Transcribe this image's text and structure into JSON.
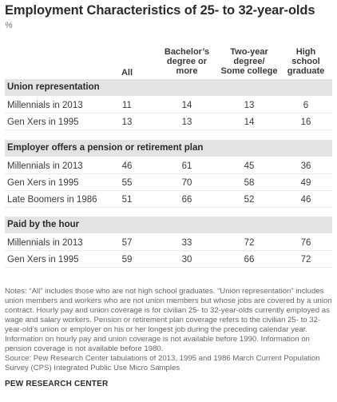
{
  "title": "Employment Characteristics of 25- to 32-year-olds",
  "unit": "%",
  "columns": [
    "All",
    "Bachelor’s\ndegree or\nmore",
    "Two-year\ndegree/\nSome college",
    "High school\ngraduate"
  ],
  "sections": [
    {
      "title": "Union representation",
      "rows": [
        {
          "label": "Millennials in 2013",
          "values": [
            "11",
            "14",
            "13",
            "6"
          ]
        },
        {
          "label": "Gen Xers in 1995",
          "values": [
            "13",
            "13",
            "14",
            "16"
          ]
        }
      ]
    },
    {
      "title": "Employer offers a pension or retirement plan",
      "rows": [
        {
          "label": "Millennials in 2013",
          "values": [
            "46",
            "61",
            "45",
            "36"
          ]
        },
        {
          "label": "Gen Xers in 1995",
          "values": [
            "55",
            "70",
            "58",
            "49"
          ]
        },
        {
          "label": "Late Boomers in 1986",
          "values": [
            "51",
            "66",
            "52",
            "46"
          ]
        }
      ]
    },
    {
      "title": "Paid by the hour",
      "rows": [
        {
          "label": "Millennials in 2013",
          "values": [
            "57",
            "33",
            "72",
            "76"
          ]
        },
        {
          "label": "Gen Xers in 1995",
          "values": [
            "59",
            "30",
            "66",
            "72"
          ]
        }
      ]
    }
  ],
  "notes": "Notes: “All” includes those who are not high school graduates. “Union representation” includes union members and workers who are not union members but whose jobs are covered by a union contract. Hourly pay and union coverage is for civilian 25- to 32-year-olds currently employed as wage and salary workers. Pension or retirement plan coverage refers to the civilian 25- to 32-year-old’s union or employer on his or her longest job during the preceding calendar year. Information on hourly pay and union coverage is not available before 1990. Information on pension coverage is not available before 1980.",
  "source": "Source: Pew Research Center tabulations of 2013, 1995 and 1986 March Current Population Survey (CPS) Integrated Public Use Micro Samples",
  "brand": "PEW RESEARCH CENTER"
}
